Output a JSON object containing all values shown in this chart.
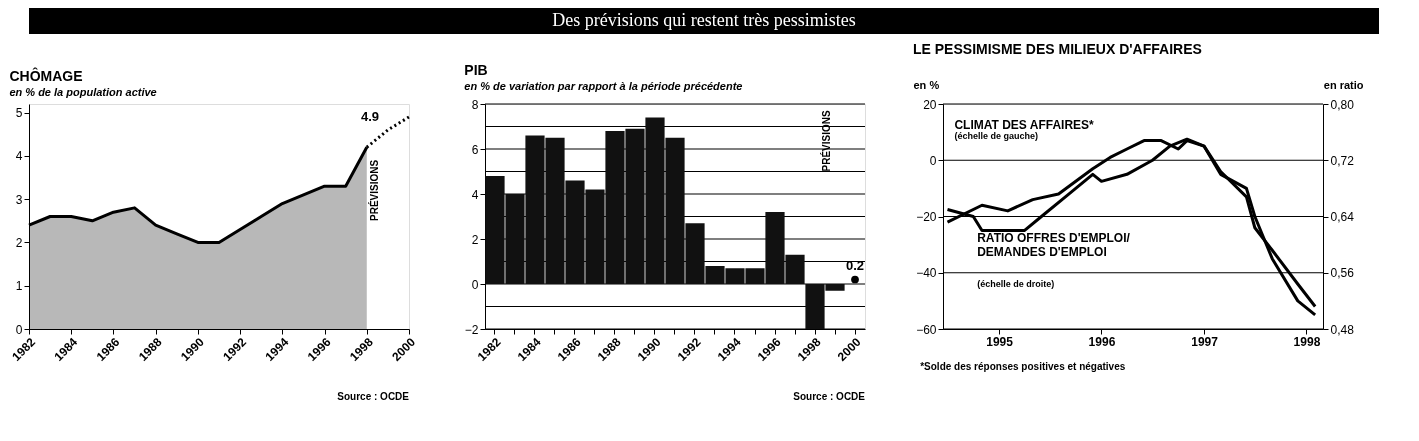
{
  "chart_data": [
    {
      "type": "other",
      "title": "Des prévisions qui restent très pessimistes"
    },
    {
      "type": "area",
      "title": "CHÔMAGE",
      "subtitle": "en % de la population active",
      "x": [
        1982,
        1983,
        1984,
        1985,
        1986,
        1987,
        1988,
        1989,
        1990,
        1991,
        1992,
        1993,
        1994,
        1995,
        1996,
        1997,
        1998
      ],
      "xlim": [
        1982,
        2000
      ],
      "xticks": [
        1982,
        1984,
        1986,
        1988,
        1990,
        1992,
        1994,
        1996,
        1998,
        2000
      ],
      "ylim": [
        0,
        5.2
      ],
      "yticks": [
        0,
        1,
        2,
        3,
        4,
        5
      ],
      "series": [
        {
          "color": "#000000",
          "values": [
            2.4,
            2.6,
            2.6,
            2.5,
            2.7,
            2.8,
            2.4,
            2.2,
            2.0,
            2.0,
            2.3,
            2.6,
            2.9,
            3.1,
            3.3,
            3.3,
            4.2
          ]
        },
        {
          "type": "line",
          "color": "#000000",
          "line_style": "dotted",
          "x": [
            1998,
            1999,
            2000
          ],
          "values": [
            4.2,
            4.6,
            4.9
          ]
        }
      ],
      "annotations": [
        {
          "text": "4.9",
          "x": 2000,
          "y": 4.9
        },
        "PRÉVISIONS",
        "Source : OCDE"
      ]
    },
    {
      "type": "bar",
      "title": "PIB",
      "subtitle": "en % de variation par rapport à la période précédente",
      "categories": [
        "1982",
        null,
        "1984",
        null,
        "1986",
        null,
        "1988",
        null,
        "1990",
        null,
        "1992",
        null,
        "1994",
        null,
        "1996",
        null,
        "1998",
        null,
        "2000"
      ],
      "ylim": [
        -2,
        8
      ],
      "yticks": [
        -2,
        {
          "value": -1,
          "label": null
        },
        0,
        {
          "value": 1,
          "label": null
        },
        2,
        {
          "value": 3,
          "label": null
        },
        4,
        {
          "value": 5,
          "label": null
        },
        6,
        {
          "value": 7,
          "label": null
        },
        8
      ],
      "grid": "y",
      "series": [
        {
          "color": "#111111",
          "values": [
            4.8,
            4.0,
            6.6,
            6.5,
            4.6,
            4.2,
            6.8,
            6.9,
            7.4,
            6.5,
            2.7,
            0.8,
            0.7,
            0.7,
            3.2,
            1.3,
            -2.0,
            -0.3,
            null
          ]
        },
        {
          "type": "scatter",
          "marker": "circle",
          "color": "#000000",
          "values": [
            null,
            null,
            null,
            null,
            null,
            null,
            null,
            null,
            null,
            null,
            null,
            null,
            null,
            null,
            null,
            null,
            null,
            null,
            0.2
          ]
        }
      ],
      "annotations": [
        {
          "text": "0.2",
          "x": "2000",
          "y": 0.2
        },
        "PRÉVISIONS",
        "Source : OCDE"
      ]
    },
    {
      "type": "line",
      "title": "LE PESSIMISME DES MILIEUX D'AFFAIRES",
      "ylabel": "en %",
      "y2label": "en ratio",
      "xlim": [
        "1994-06-15",
        "1998-03-01"
      ],
      "xticks": [
        "1995",
        "1996",
        "1997",
        "1998"
      ],
      "ylim": [
        -60,
        20
      ],
      "yticks": [
        -60,
        -40,
        -20,
        0,
        20
      ],
      "y2lim": [
        0.48,
        0.8
      ],
      "y2ticks": [
        {
          "value": 0.48,
          "label": "0,48"
        },
        {
          "value": 0.56,
          "label": "0,56"
        },
        {
          "value": 0.64,
          "label": "0,64"
        },
        {
          "value": 0.72,
          "label": "0,72"
        },
        {
          "value": 0.8,
          "label": "0,80"
        }
      ],
      "grid": "y",
      "series": [
        {
          "name": "CLIMAT DES AFFAIRES*",
          "color": "#000000",
          "x": [
            "1994-07",
            "1994-11",
            "1995-02",
            "1995-05",
            "1995-08",
            "1995-12",
            "1996-02",
            "1996-04",
            "1996-06",
            "1996-08",
            "1996-10",
            "1996-11",
            "1997-01",
            "1997-03",
            "1997-06",
            "1997-07",
            "1997-09",
            "1997-12",
            "1998-02"
          ],
          "values": [
            -22,
            -16,
            -18,
            -14,
            -12,
            -3,
            1,
            4,
            7,
            7,
            4,
            7,
            5,
            -4,
            -13,
            -24,
            -32,
            -44,
            -52
          ]
        },
        {
          "name": "RATIO OFFRES D'EMPLOI/ DEMANDES D'EMPLOI",
          "axis": "y2",
          "color": "#000000",
          "x": [
            "1994-07",
            "1994-10",
            "1994-11",
            "1995-04",
            "1995-06",
            "1995-09",
            "1995-12",
            "1996-01",
            "1996-04",
            "1996-07",
            "1996-09",
            "1996-11",
            "1997-01",
            "1997-03",
            "1997-06",
            "1997-07",
            "1997-09",
            "1997-12",
            "1998-02"
          ],
          "values": [
            0.65,
            0.64,
            0.62,
            0.62,
            0.64,
            0.67,
            0.7,
            0.69,
            0.7,
            0.72,
            0.74,
            0.75,
            0.74,
            0.7,
            0.68,
            0.64,
            0.58,
            0.52,
            0.5
          ]
        }
      ],
      "annotations": [
        "(échelle de gauche)",
        "(échelle de droite)",
        "*Solde des réponses positives et négatives"
      ]
    }
  ]
}
